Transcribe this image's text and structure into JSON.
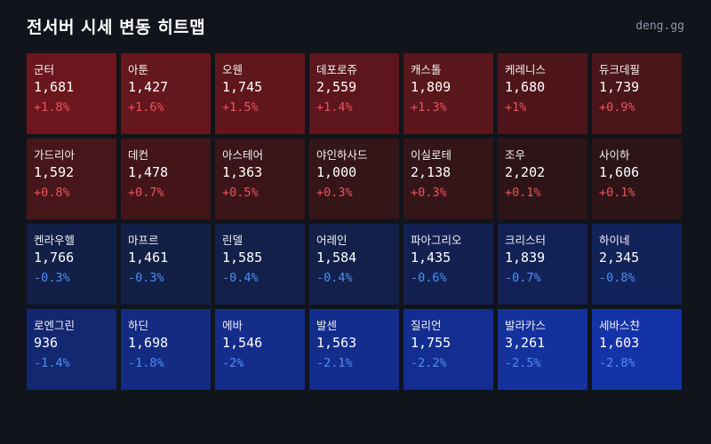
{
  "header": {
    "title": "전서버 시세 변동 히트맵",
    "brand": "deng.gg"
  },
  "colors": {
    "background": "#11141b",
    "up_text": "#f0525c",
    "down_text": "#4d8ff5",
    "up_tile_strong": "#6b171d",
    "down_tile_strong": "#1433a8"
  },
  "tiles": [
    {
      "name": "군터",
      "price": "1,681",
      "change": "+1.8%",
      "pct": 1.8
    },
    {
      "name": "아툰",
      "price": "1,427",
      "change": "+1.6%",
      "pct": 1.6
    },
    {
      "name": "오웬",
      "price": "1,745",
      "change": "+1.5%",
      "pct": 1.5
    },
    {
      "name": "데포로쥬",
      "price": "2,559",
      "change": "+1.4%",
      "pct": 1.4
    },
    {
      "name": "캐스톨",
      "price": "1,809",
      "change": "+1.3%",
      "pct": 1.3
    },
    {
      "name": "케레니스",
      "price": "1,680",
      "change": "+1%",
      "pct": 1.0
    },
    {
      "name": "듀크데필",
      "price": "1,739",
      "change": "+0.9%",
      "pct": 0.9
    },
    {
      "name": "가드리아",
      "price": "1,592",
      "change": "+0.8%",
      "pct": 0.8
    },
    {
      "name": "데컨",
      "price": "1,478",
      "change": "+0.7%",
      "pct": 0.7
    },
    {
      "name": "아스테어",
      "price": "1,363",
      "change": "+0.5%",
      "pct": 0.5
    },
    {
      "name": "야인하사드",
      "price": "1,000",
      "change": "+0.3%",
      "pct": 0.3
    },
    {
      "name": "이실로테",
      "price": "2,138",
      "change": "+0.3%",
      "pct": 0.3
    },
    {
      "name": "조우",
      "price": "2,202",
      "change": "+0.1%",
      "pct": 0.1
    },
    {
      "name": "사이하",
      "price": "1,606",
      "change": "+0.1%",
      "pct": 0.1
    },
    {
      "name": "켄라우헬",
      "price": "1,766",
      "change": "-0.3%",
      "pct": -0.3
    },
    {
      "name": "마프르",
      "price": "1,461",
      "change": "-0.3%",
      "pct": -0.3
    },
    {
      "name": "린델",
      "price": "1,585",
      "change": "-0.4%",
      "pct": -0.4
    },
    {
      "name": "어레인",
      "price": "1,584",
      "change": "-0.4%",
      "pct": -0.4
    },
    {
      "name": "파아그리오",
      "price": "1,435",
      "change": "-0.6%",
      "pct": -0.6
    },
    {
      "name": "크리스터",
      "price": "1,839",
      "change": "-0.7%",
      "pct": -0.7
    },
    {
      "name": "하이네",
      "price": "2,345",
      "change": "-0.8%",
      "pct": -0.8
    },
    {
      "name": "로엔그린",
      "price": "936",
      "change": "-1.4%",
      "pct": -1.4
    },
    {
      "name": "하딘",
      "price": "1,698",
      "change": "-1.8%",
      "pct": -1.8
    },
    {
      "name": "에바",
      "price": "1,546",
      "change": "-2%",
      "pct": -2.0
    },
    {
      "name": "발센",
      "price": "1,563",
      "change": "-2.1%",
      "pct": -2.1
    },
    {
      "name": "질리언",
      "price": "1,755",
      "change": "-2.2%",
      "pct": -2.2
    },
    {
      "name": "발라카스",
      "price": "3,261",
      "change": "-2.5%",
      "pct": -2.5
    },
    {
      "name": "세바스챤",
      "price": "1,603",
      "change": "-2.8%",
      "pct": -2.8
    }
  ]
}
